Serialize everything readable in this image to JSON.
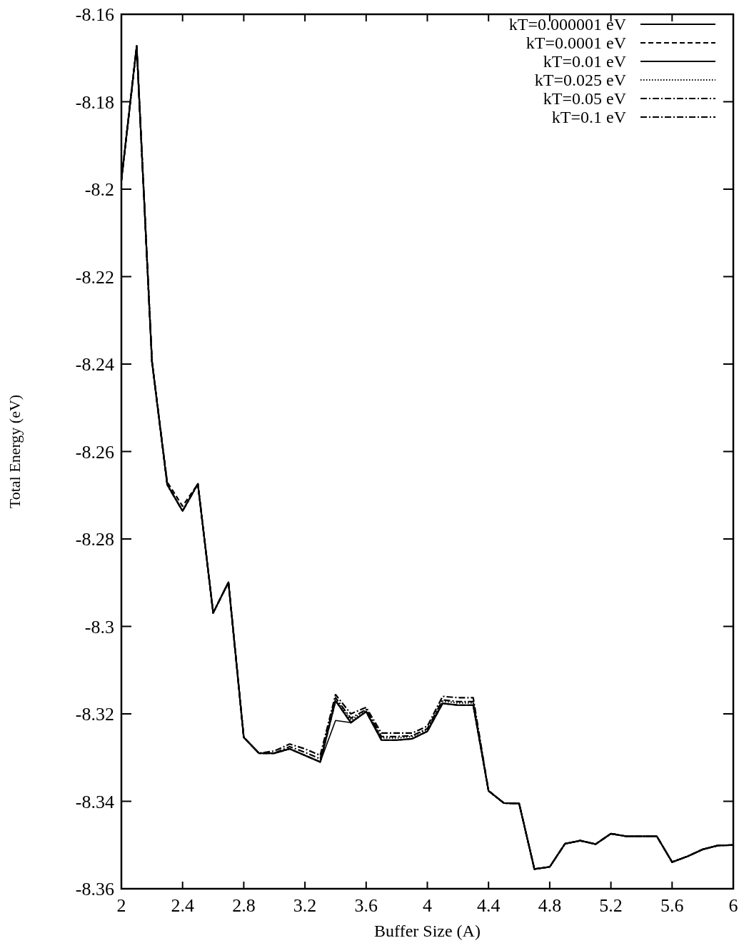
{
  "chart_data": {
    "type": "line",
    "xlabel": "Buffer Size (A)",
    "ylabel": "Total Energy (eV)",
    "x": [
      2,
      2.1,
      2.2,
      2.3,
      2.4,
      2.5,
      2.6,
      2.7,
      2.8,
      2.9,
      3,
      3.1,
      3.2,
      3.3,
      3.4,
      3.5,
      3.6,
      3.7,
      3.8,
      3.9,
      4,
      4.1,
      4.2,
      4.3,
      4.4,
      4.5,
      4.6,
      4.7,
      4.8,
      4.9,
      5,
      5.1,
      5.2,
      5.3,
      5.4,
      5.5,
      5.6,
      5.7,
      5.8,
      5.9,
      6
    ],
    "xlim": [
      2,
      6
    ],
    "xticks": [
      2,
      2.4,
      2.8,
      3.2,
      3.6,
      4,
      4.4,
      4.8,
      5.2,
      5.6,
      6
    ],
    "ylim": [
      -8.36,
      -8.16
    ],
    "yticks": [
      -8.36,
      -8.34,
      -8.32,
      -8.3,
      -8.28,
      -8.26,
      -8.24,
      -8.22,
      -8.2,
      -8.18,
      -8.16
    ],
    "legend": "top right",
    "grid": false,
    "marker": "none",
    "series": [
      {
        "name": "kT=0.000001 eV",
        "color": "#000000",
        "line_style": "solid",
        "values": [
          -8.198,
          -8.1673,
          -8.2394,
          -8.2676,
          -8.2736,
          -8.2674,
          -8.2969,
          -8.2899,
          -8.3254,
          -8.329,
          -8.329,
          -8.328,
          -8.3295,
          -8.331,
          -8.3215,
          -8.322,
          -8.3195,
          -8.326,
          -8.326,
          -8.3257,
          -8.324,
          -8.3176,
          -8.318,
          -8.318,
          -8.3376,
          -8.3404,
          -8.3405,
          -8.3555,
          -8.355,
          -8.3497,
          -8.349,
          -8.3498,
          -8.3474,
          -8.348,
          -8.348,
          -8.348,
          -8.3539,
          -8.3526,
          -8.351,
          -8.3501,
          -8.35
        ]
      },
      {
        "name": "kT=0.0001 eV",
        "color": "#000000",
        "line_style": "dashed",
        "values": [
          -8.198,
          -8.1673,
          -8.2394,
          -8.267,
          -8.2725,
          -8.2674,
          -8.2969,
          -8.2899,
          -8.3254,
          -8.329,
          -8.329,
          -8.328,
          -8.3295,
          -8.331,
          -8.317,
          -8.322,
          -8.3195,
          -8.326,
          -8.326,
          -8.3257,
          -8.324,
          -8.3176,
          -8.318,
          -8.318,
          -8.3376,
          -8.3404,
          -8.3405,
          -8.3555,
          -8.355,
          -8.3497,
          -8.349,
          -8.3498,
          -8.3474,
          -8.348,
          -8.348,
          -8.348,
          -8.3539,
          -8.3526,
          -8.351,
          -8.3501,
          -8.35
        ]
      },
      {
        "name": "kT=0.01 eV",
        "color": "#000000",
        "line_style": "solid",
        "values": [
          -8.198,
          -8.1673,
          -8.2394,
          -8.2676,
          -8.2736,
          -8.2674,
          -8.2969,
          -8.2899,
          -8.3254,
          -8.329,
          -8.329,
          -8.328,
          -8.3295,
          -8.331,
          -8.317,
          -8.322,
          -8.3195,
          -8.326,
          -8.326,
          -8.3257,
          -8.324,
          -8.3176,
          -8.318,
          -8.318,
          -8.3376,
          -8.3404,
          -8.3405,
          -8.3555,
          -8.355,
          -8.3497,
          -8.349,
          -8.3498,
          -8.3474,
          -8.348,
          -8.348,
          -8.348,
          -8.3539,
          -8.3526,
          -8.351,
          -8.3501,
          -8.35
        ]
      },
      {
        "name": "kT=0.025 eV",
        "color": "#000000",
        "line_style": "dotted",
        "values": [
          -8.198,
          -8.1673,
          -8.2394,
          -8.2676,
          -8.2736,
          -8.2674,
          -8.2969,
          -8.2899,
          -8.3254,
          -8.329,
          -8.329,
          -8.328,
          -8.3295,
          -8.331,
          -8.3165,
          -8.3215,
          -8.319,
          -8.3255,
          -8.3255,
          -8.3252,
          -8.3235,
          -8.3171,
          -8.3175,
          -8.3175,
          -8.3376,
          -8.3404,
          -8.3405,
          -8.3555,
          -8.355,
          -8.3497,
          -8.349,
          -8.3498,
          -8.3474,
          -8.348,
          -8.348,
          -8.348,
          -8.3539,
          -8.3526,
          -8.351,
          -8.3501,
          -8.35
        ]
      },
      {
        "name": "kT=0.05 eV",
        "color": "#000000",
        "line_style": "dashdot",
        "values": [
          -8.198,
          -8.1673,
          -8.2394,
          -8.2676,
          -8.2736,
          -8.2674,
          -8.2969,
          -8.2899,
          -8.3254,
          -8.329,
          -8.329,
          -8.3275,
          -8.3288,
          -8.3303,
          -8.3163,
          -8.321,
          -8.319,
          -8.3252,
          -8.3252,
          -8.325,
          -8.3234,
          -8.3168,
          -8.3172,
          -8.3172,
          -8.3376,
          -8.3404,
          -8.3405,
          -8.3555,
          -8.355,
          -8.3497,
          -8.349,
          -8.3498,
          -8.3474,
          -8.348,
          -8.348,
          -8.348,
          -8.3539,
          -8.3526,
          -8.351,
          -8.3501,
          -8.35
        ]
      },
      {
        "name": "kT=0.1 eV",
        "color": "#000000",
        "line_style": "dashdot",
        "values": [
          -8.198,
          -8.1673,
          -8.2394,
          -8.2676,
          -8.2736,
          -8.2674,
          -8.2969,
          -8.2899,
          -8.3254,
          -8.329,
          -8.3285,
          -8.3269,
          -8.328,
          -8.3295,
          -8.3156,
          -8.32,
          -8.3185,
          -8.3244,
          -8.3244,
          -8.3244,
          -8.3228,
          -8.316,
          -8.3163,
          -8.3163,
          -8.3376,
          -8.3404,
          -8.3405,
          -8.3555,
          -8.355,
          -8.3497,
          -8.349,
          -8.3498,
          -8.3474,
          -8.348,
          -8.348,
          -8.348,
          -8.3539,
          -8.3526,
          -8.351,
          -8.3501,
          -8.35
        ]
      }
    ]
  }
}
